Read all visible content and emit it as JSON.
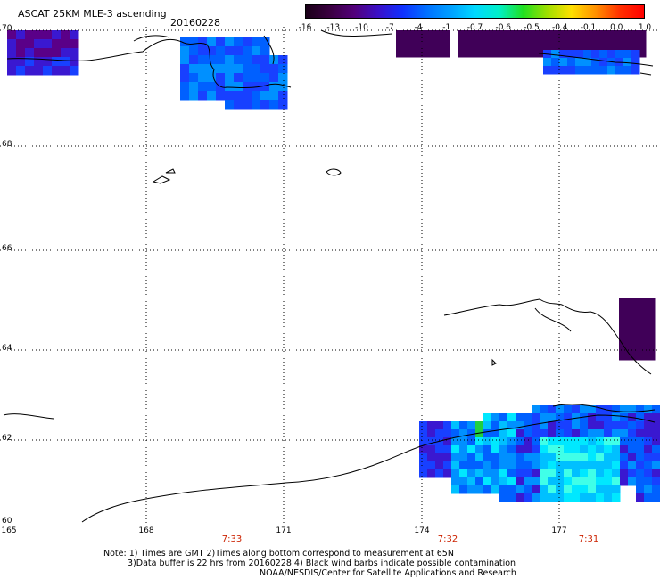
{
  "header": {
    "title": "ASCAT 25KM MLE-3 ascending",
    "date": "20160228"
  },
  "colorbar": {
    "labels": [
      "-16",
      "-13",
      "-10",
      "-7",
      "-4",
      "-1",
      "-0.7",
      "-0.6",
      "-0.5",
      "-0.4",
      "-0.1",
      "0.0",
      "1.0"
    ],
    "colors": [
      "#1a0018",
      "#3a0040",
      "#52007a",
      "#3a10c8",
      "#1030ff",
      "#0070ff",
      "#00a0ff",
      "#00d8ff",
      "#00f0c8",
      "#20e020",
      "#a0e000",
      "#ffe000",
      "#ff9000",
      "#ff3000",
      "#ff0000"
    ]
  },
  "axes": {
    "lat_labels": [
      "70",
      "68",
      "66",
      "64",
      "62",
      "60"
    ],
    "lon_labels": [
      "165",
      "168",
      "171",
      "174",
      "177"
    ]
  },
  "times": [
    "7:33",
    "7:32",
    "7:31"
  ],
  "notes": [
    "Note: 1) Times are GMT 2)Times along bottom correspond to measurement at 65N",
    "3)Data buffer is 22 hrs from 20160228 4) Black wind barbs indicate possible contamination",
    "NOAA/NESDIS/Center for Satellite Applications and Research"
  ]
}
